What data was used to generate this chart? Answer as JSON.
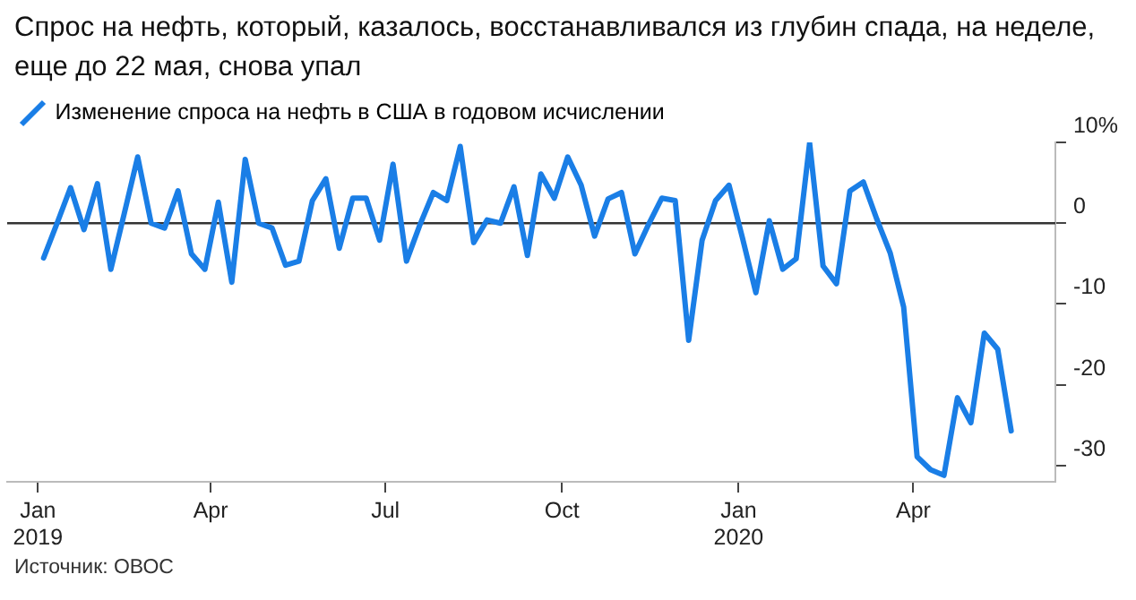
{
  "chart_data": {
    "type": "line",
    "title": "Спрос на нефть, который, казалось, восстанавливался из глубин спада, на неделе, еще до 22 мая, снова упал",
    "annotations": [
      "Источник: ОВОС"
    ],
    "x": [
      "2019-01-04",
      "2019-01-11",
      "2019-01-18",
      "2019-01-25",
      "2019-02-01",
      "2019-02-08",
      "2019-02-15",
      "2019-02-22",
      "2019-03-01",
      "2019-03-08",
      "2019-03-15",
      "2019-03-22",
      "2019-03-29",
      "2019-04-05",
      "2019-04-12",
      "2019-04-19",
      "2019-04-26",
      "2019-05-03",
      "2019-05-10",
      "2019-05-17",
      "2019-05-24",
      "2019-05-31",
      "2019-06-07",
      "2019-06-14",
      "2019-06-21",
      "2019-06-28",
      "2019-07-05",
      "2019-07-12",
      "2019-07-19",
      "2019-07-26",
      "2019-08-02",
      "2019-08-09",
      "2019-08-16",
      "2019-08-23",
      "2019-08-30",
      "2019-09-06",
      "2019-09-13",
      "2019-09-20",
      "2019-09-27",
      "2019-10-04",
      "2019-10-11",
      "2019-10-18",
      "2019-10-25",
      "2019-11-01",
      "2019-11-08",
      "2019-11-15",
      "2019-11-22",
      "2019-11-29",
      "2019-12-06",
      "2019-12-13",
      "2019-12-20",
      "2019-12-27",
      "2020-01-03",
      "2020-01-10",
      "2020-01-17",
      "2020-01-24",
      "2020-01-31",
      "2020-02-07",
      "2020-02-14",
      "2020-02-21",
      "2020-02-28",
      "2020-03-06",
      "2020-03-13",
      "2020-03-20",
      "2020-03-27",
      "2020-04-03",
      "2020-04-10",
      "2020-04-17",
      "2020-04-24",
      "2020-05-01",
      "2020-05-08",
      "2020-05-15",
      "2020-05-22"
    ],
    "series": [
      {
        "name": "Изменение спроса на нефть в США в годовом исчислении",
        "color": "#1a7ee6",
        "values": [
          -4.3,
          0,
          4.4,
          -0.8,
          4.9,
          -5.7,
          1.2,
          8.2,
          0,
          -0.6,
          4.0,
          -3.8,
          -5.7,
          2.6,
          -7.3,
          7.9,
          0,
          -0.6,
          -5.2,
          -4.7,
          2.8,
          5.5,
          -3.1,
          3.1,
          3.1,
          -2.1,
          7.3,
          -4.7,
          -0.2,
          3.8,
          2.8,
          9.5,
          -2.4,
          0.4,
          0,
          4.5,
          -4.0,
          6.1,
          3.1,
          8.2,
          4.7,
          -1.6,
          3.0,
          3.8,
          -3.8,
          -0.2,
          3.1,
          2.8,
          -14.5,
          -2.1,
          2.8,
          4.7,
          -1.8,
          -8.6,
          0.3,
          -5.7,
          -4.4,
          9.9,
          -5.3,
          -7.5,
          4.0,
          5.1,
          0.5,
          -3.7,
          -10.4,
          -28.9,
          -30.5,
          -31.2,
          -21.6,
          -24.7,
          -13.6,
          -15.6,
          -25.7
        ]
      }
    ],
    "xlim": [
      "2018-12-16",
      "2020-06-14"
    ],
    "xticks": [
      {
        "value": "2019-01-01",
        "label": "Jan\n2019"
      },
      {
        "value": "2019-04-01",
        "label": "Apr"
      },
      {
        "value": "2019-07-01",
        "label": "Jul"
      },
      {
        "value": "2019-10-01",
        "label": "Oct"
      },
      {
        "value": "2020-01-01",
        "label": "Jan\n2020"
      },
      {
        "value": "2020-04-01",
        "label": "Apr"
      }
    ],
    "ylim": [
      -32,
      10
    ],
    "yticks": [
      {
        "value": 10,
        "label": "10%"
      },
      0,
      -10,
      -20,
      -30
    ],
    "ref_lines": [
      {
        "axis": "y",
        "value": 0,
        "color": "#333333"
      }
    ],
    "grid": false,
    "legend": "top left",
    "marker": "none",
    "line_style": "solid"
  }
}
